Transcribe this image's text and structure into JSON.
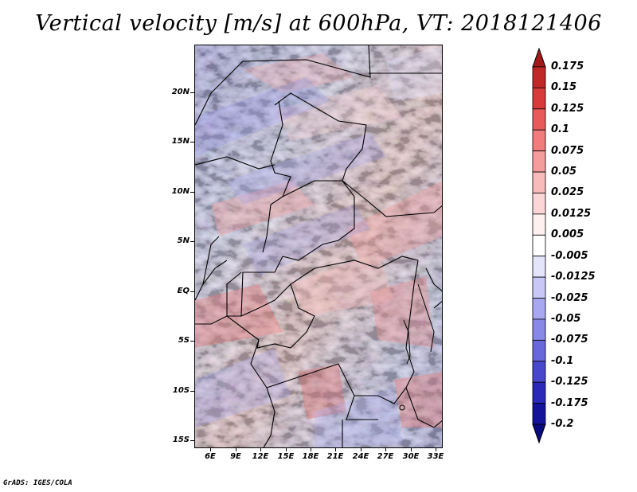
{
  "title": "Vertical velocity [m/s] at 600hPa, VT: 2018121406",
  "credit": "GrADS: IGES/COLA",
  "lat_labels": [
    "20N",
    "15N",
    "10N",
    "5N",
    "EQ",
    "5S",
    "10S",
    "15S"
  ],
  "lon_labels": [
    "6E",
    "9E",
    "12E",
    "15E",
    "18E",
    "21E",
    "24E",
    "27E",
    "30E",
    "33E"
  ],
  "colorbar": {
    "labels": [
      "0.175",
      "0.15",
      "0.125",
      "0.1",
      "0.075",
      "0.05",
      "0.025",
      "0.0125",
      "0.005",
      "-0.005",
      "-0.0125",
      "-0.025",
      "-0.05",
      "-0.075",
      "-0.1",
      "-0.125",
      "-0.175",
      "-0.2"
    ],
    "colors": [
      "#a01a1a",
      "#c02828",
      "#d83a3a",
      "#e85a5a",
      "#f07c7c",
      "#f59c9c",
      "#f9baba",
      "#fcd6d6",
      "#fff0f0",
      "#ffffff",
      "#e4e4fb",
      "#c8c8f6",
      "#a8a8f0",
      "#8888e6",
      "#6868dc",
      "#4848cc",
      "#2a2ab8",
      "#14149a",
      "#0a0a80"
    ]
  }
}
